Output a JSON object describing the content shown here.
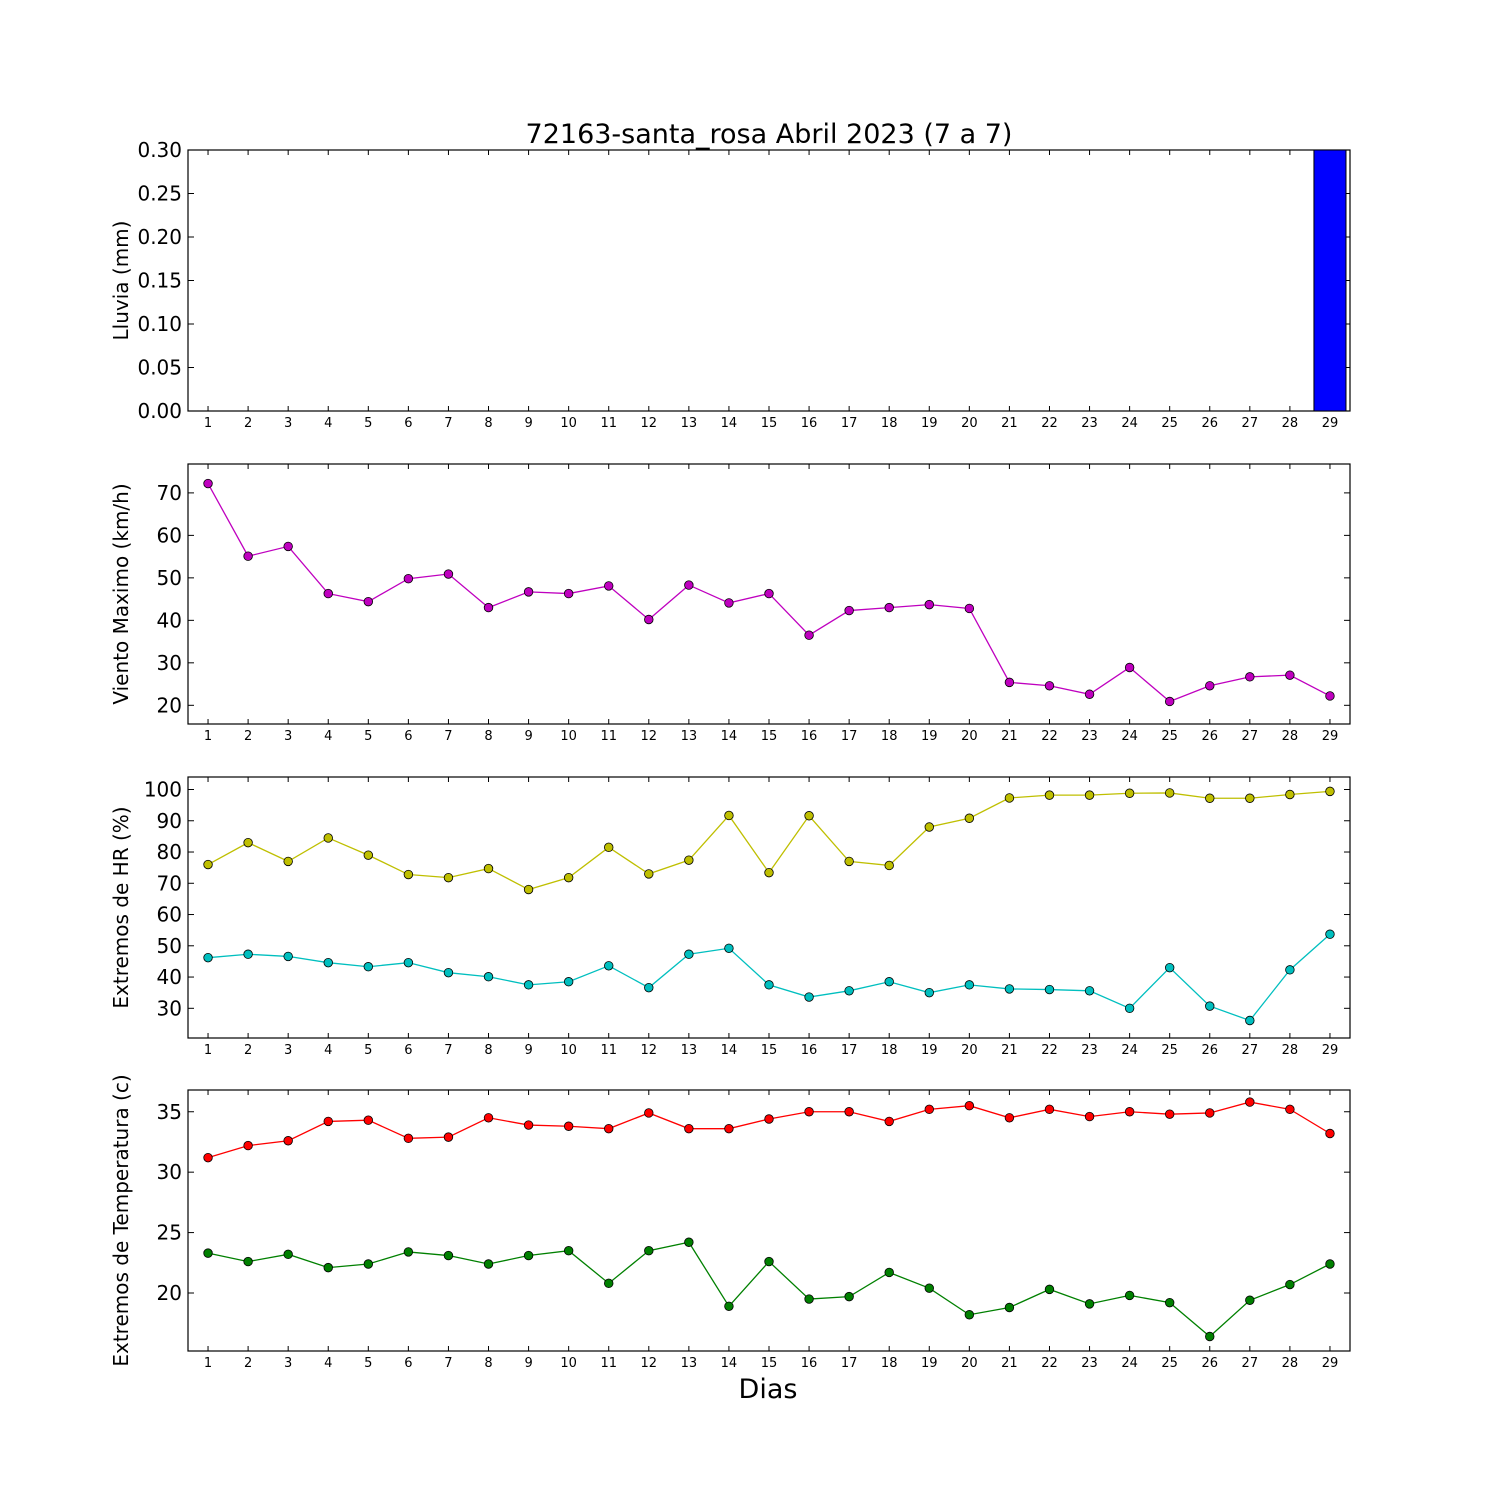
{
  "title": "72163-santa_rosa Abril 2023  (7 a 7)",
  "xlabel": "Dias",
  "chart_data": [
    {
      "type": "bar",
      "ylabel": "Lluvia (mm)",
      "x": [
        1,
        2,
        3,
        4,
        5,
        6,
        7,
        8,
        9,
        10,
        11,
        12,
        13,
        14,
        15,
        16,
        17,
        18,
        19,
        20,
        21,
        22,
        23,
        24,
        25,
        26,
        27,
        28,
        29
      ],
      "ylim": [
        0,
        0.3
      ],
      "yticks": [
        "0.00",
        "0.05",
        "0.10",
        "0.15",
        "0.20",
        "0.25",
        "0.30"
      ],
      "ytick_values": [
        0,
        0.05,
        0.1,
        0.15,
        0.2,
        0.25,
        0.3
      ],
      "series": [
        {
          "color": "#0000ff",
          "values": [
            0,
            0,
            0,
            0,
            0,
            0,
            0,
            0,
            0,
            0,
            0,
            0,
            0,
            0,
            0,
            0,
            0,
            0,
            0,
            0,
            0,
            0,
            0,
            0,
            0,
            0,
            0,
            0,
            0.3
          ]
        }
      ]
    },
    {
      "type": "line",
      "ylabel": "Viento Maximo (km/h)",
      "x": [
        1,
        2,
        3,
        4,
        5,
        6,
        7,
        8,
        9,
        10,
        11,
        12,
        13,
        14,
        15,
        16,
        17,
        18,
        19,
        20,
        21,
        22,
        23,
        24,
        25,
        26,
        27,
        28,
        29
      ],
      "ylim": [
        15.6,
        76.8
      ],
      "yticks": [
        "20",
        "30",
        "40",
        "50",
        "60",
        "70"
      ],
      "ytick_values": [
        20,
        30,
        40,
        50,
        60,
        70
      ],
      "series": [
        {
          "color": "#bf00bf",
          "values": [
            72.2,
            55.1,
            57.4,
            46.3,
            44.4,
            49.8,
            50.9,
            43.0,
            46.7,
            46.3,
            48.1,
            40.2,
            48.3,
            44.1,
            46.3,
            36.5,
            42.3,
            43.0,
            43.7,
            42.8,
            25.4,
            24.6,
            22.6,
            28.9,
            20.9,
            24.6,
            26.7,
            27.1,
            22.2
          ]
        }
      ]
    },
    {
      "type": "line",
      "ylabel": "Extremos de HR (%)",
      "x": [
        1,
        2,
        3,
        4,
        5,
        6,
        7,
        8,
        9,
        10,
        11,
        12,
        13,
        14,
        15,
        16,
        17,
        18,
        19,
        20,
        21,
        22,
        23,
        24,
        25,
        26,
        27,
        28,
        29
      ],
      "ylim": [
        20.5,
        104
      ],
      "yticks": [
        "30",
        "40",
        "50",
        "60",
        "70",
        "80",
        "90",
        "100"
      ],
      "ytick_values": [
        30,
        40,
        50,
        60,
        70,
        80,
        90,
        100
      ],
      "series": [
        {
          "color": "#bfbf00",
          "values": [
            76,
            83,
            77,
            84.5,
            79,
            72.8,
            71.8,
            74.7,
            68,
            71.8,
            81.5,
            73,
            77.4,
            91.7,
            73.4,
            91.6,
            77,
            75.7,
            88,
            90.8,
            97.3,
            98.2,
            98.2,
            98.8,
            98.9,
            97.2,
            97.2,
            98.4,
            99.4
          ]
        },
        {
          "color": "#00bfbf",
          "values": [
            46.2,
            47.3,
            46.6,
            44.6,
            43.3,
            44.6,
            41.4,
            40.1,
            37.5,
            38.5,
            43.6,
            36.6,
            47.3,
            49.2,
            37.5,
            33.6,
            35.6,
            38.5,
            35.0,
            37.5,
            36.2,
            36.0,
            35.6,
            30.0,
            43.0,
            30.7,
            26.1,
            42.3,
            53.7
          ]
        }
      ]
    },
    {
      "type": "line",
      "ylabel": "Extremos de Temperatura (c)",
      "x": [
        1,
        2,
        3,
        4,
        5,
        6,
        7,
        8,
        9,
        10,
        11,
        12,
        13,
        14,
        15,
        16,
        17,
        18,
        19,
        20,
        21,
        22,
        23,
        24,
        25,
        26,
        27,
        28,
        29
      ],
      "ylim": [
        15.2,
        36.8
      ],
      "yticks": [
        "20",
        "25",
        "30",
        "35"
      ],
      "ytick_values": [
        20,
        25,
        30,
        35
      ],
      "series": [
        {
          "color": "#ff0000",
          "values": [
            31.2,
            32.2,
            32.6,
            34.2,
            34.3,
            32.8,
            32.9,
            34.5,
            33.9,
            33.8,
            33.6,
            34.9,
            33.6,
            33.6,
            34.4,
            35.0,
            35.0,
            34.2,
            35.2,
            35.5,
            34.5,
            35.2,
            34.6,
            35.0,
            34.8,
            34.9,
            35.8,
            35.2,
            33.2
          ]
        },
        {
          "color": "#008000",
          "values": [
            23.3,
            22.6,
            23.2,
            22.1,
            22.4,
            23.4,
            23.1,
            22.4,
            23.1,
            23.5,
            20.8,
            23.5,
            24.2,
            18.9,
            22.6,
            19.5,
            19.7,
            21.7,
            20.4,
            18.2,
            18.8,
            20.3,
            19.1,
            19.8,
            19.2,
            16.4,
            19.4,
            20.7,
            22.4
          ]
        }
      ]
    }
  ]
}
